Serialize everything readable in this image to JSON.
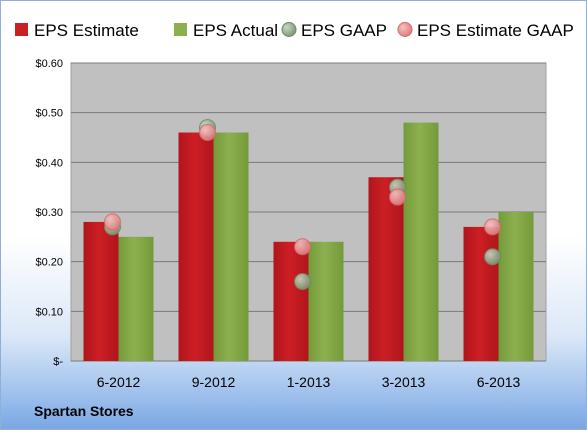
{
  "company": "Spartan Stores",
  "colors": {
    "eps_estimate": "#cc1f25",
    "eps_actual": "#8db04f",
    "eps_gaap": "#7f9b78",
    "eps_estimate_gaap": "#e08080",
    "plot_background": "#c0c0c0"
  },
  "chart_data": {
    "type": "bar",
    "categories": [
      "6-2012",
      "9-2012",
      "1-2013",
      "3-2013",
      "6-2013"
    ],
    "series": [
      {
        "name": "EPS Estimate",
        "kind": "bar",
        "values": [
          0.28,
          0.46,
          0.24,
          0.37,
          0.27
        ]
      },
      {
        "name": "EPS Actual",
        "kind": "bar",
        "values": [
          0.25,
          0.46,
          0.24,
          0.48,
          0.3
        ]
      },
      {
        "name": "EPS GAAP",
        "kind": "marker",
        "values": [
          0.27,
          0.47,
          0.16,
          0.35,
          0.21
        ]
      },
      {
        "name": "EPS Estimate GAAP",
        "kind": "marker",
        "values": [
          0.28,
          0.46,
          0.23,
          0.33,
          0.27
        ]
      }
    ],
    "ylim": [
      0,
      0.6
    ],
    "ytick_values": [
      0,
      0.1,
      0.2,
      0.3,
      0.4,
      0.5,
      0.6
    ],
    "ytick_labels": [
      "$-",
      "$0.10",
      "$0.20",
      "$0.30",
      "$0.40",
      "$0.50",
      "$0.60"
    ],
    "grid": true,
    "legend_position": "top"
  }
}
